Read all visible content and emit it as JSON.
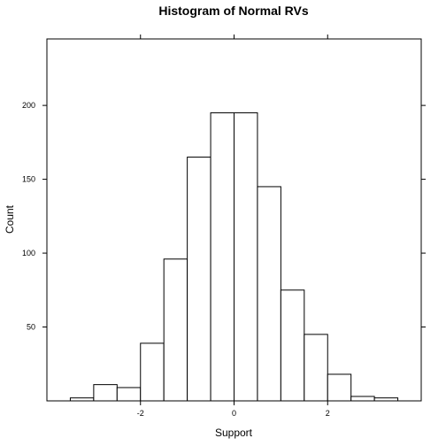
{
  "chart_data": {
    "type": "bar",
    "title": "Histogram of Normal RVs",
    "xlabel": "Support",
    "ylabel": "Count",
    "xlim": [
      -4,
      4
    ],
    "ylim": [
      0,
      245
    ],
    "x_ticks": [
      -2,
      0,
      2
    ],
    "y_ticks": [
      50,
      100,
      150,
      200
    ],
    "grid": false,
    "bin_width": 0.5,
    "bins": [
      {
        "x0": -3.5,
        "x1": -3.0,
        "count": 2
      },
      {
        "x0": -3.0,
        "x1": -2.5,
        "count": 11
      },
      {
        "x0": -2.5,
        "x1": -2.0,
        "count": 9
      },
      {
        "x0": -2.0,
        "x1": -1.5,
        "count": 39
      },
      {
        "x0": -1.5,
        "x1": -1.0,
        "count": 96
      },
      {
        "x0": -1.0,
        "x1": -0.5,
        "count": 165
      },
      {
        "x0": -0.5,
        "x1": 0.0,
        "count": 195
      },
      {
        "x0": 0.0,
        "x1": 0.5,
        "count": 195
      },
      {
        "x0": 0.5,
        "x1": 1.0,
        "count": 145
      },
      {
        "x0": 1.0,
        "x1": 1.5,
        "count": 75
      },
      {
        "x0": 1.5,
        "x1": 2.0,
        "count": 45
      },
      {
        "x0": 2.0,
        "x1": 2.5,
        "count": 18
      },
      {
        "x0": 2.5,
        "x1": 3.0,
        "count": 3
      },
      {
        "x0": 3.0,
        "x1": 3.5,
        "count": 2
      }
    ]
  }
}
